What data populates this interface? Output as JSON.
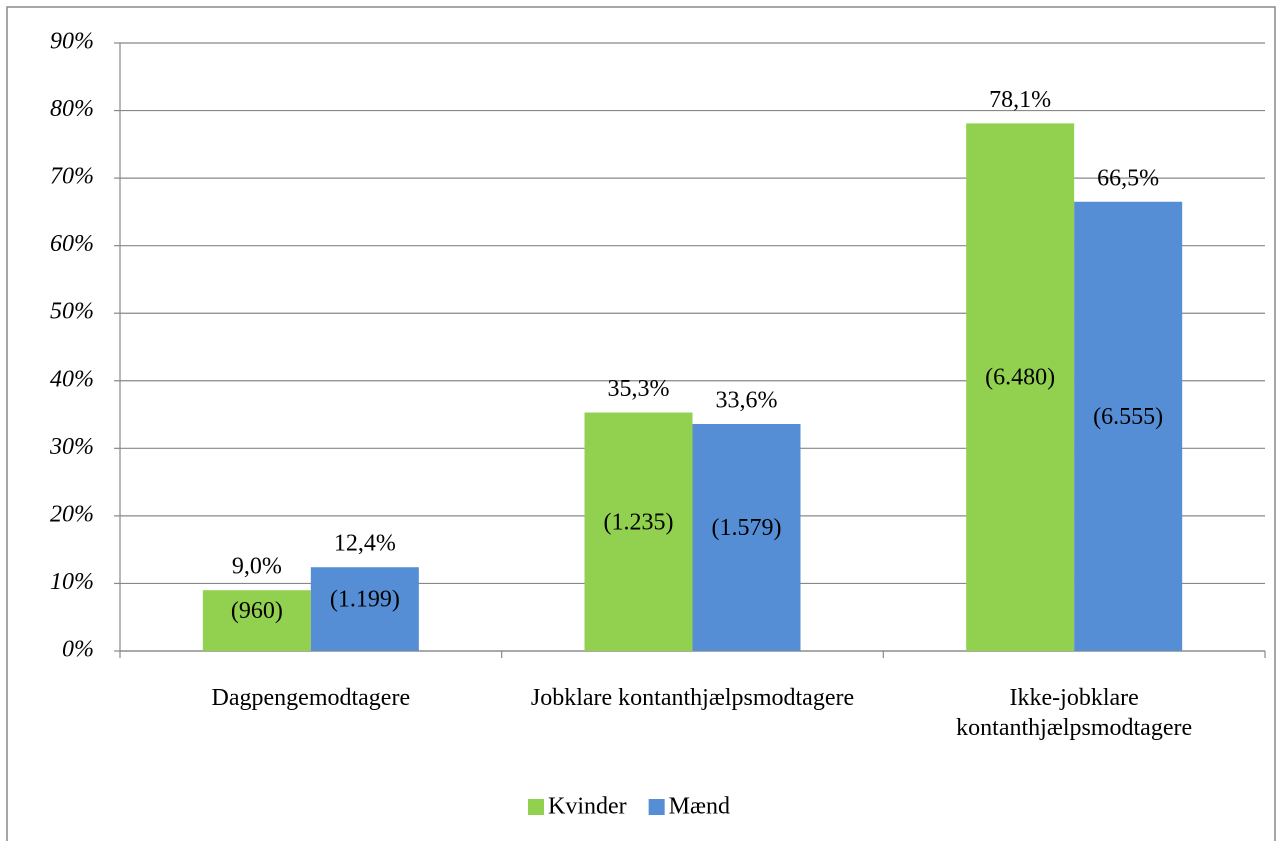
{
  "chart_data": {
    "type": "bar",
    "categories": [
      "Dagpengemodtagere",
      "Jobklare kontanthjælpsmodtagere",
      "Ikke-jobklare kontanthjælpsmodtagere"
    ],
    "series": [
      {
        "name": "Kvinder",
        "color": "#92d050",
        "values": [
          9.0,
          35.3,
          78.1
        ],
        "value_labels": [
          "9,0%",
          "35,3%",
          "78,1%"
        ],
        "count_labels": [
          "(960)",
          "(1.235)",
          "(6.480)"
        ]
      },
      {
        "name": "Mænd",
        "color": "#558ed5",
        "values": [
          12.4,
          33.6,
          66.5
        ],
        "value_labels": [
          "12,4%",
          "33,6%",
          "66,5%"
        ],
        "count_labels": [
          "(1.199)",
          "(1.579)",
          "(6.555)"
        ]
      }
    ],
    "ylim": [
      0,
      90
    ],
    "yticks": [
      {
        "value": 0,
        "label": "0%"
      },
      {
        "value": 10,
        "label": "10%"
      },
      {
        "value": 20,
        "label": "20%"
      },
      {
        "value": 30,
        "label": "30%"
      },
      {
        "value": 40,
        "label": "40%"
      },
      {
        "value": 50,
        "label": "50%"
      },
      {
        "value": 60,
        "label": "60%"
      },
      {
        "value": 70,
        "label": "70%"
      },
      {
        "value": 80,
        "label": "80%"
      },
      {
        "value": 90,
        "label": "90%"
      }
    ],
    "grid": true,
    "legend": "bottom"
  }
}
